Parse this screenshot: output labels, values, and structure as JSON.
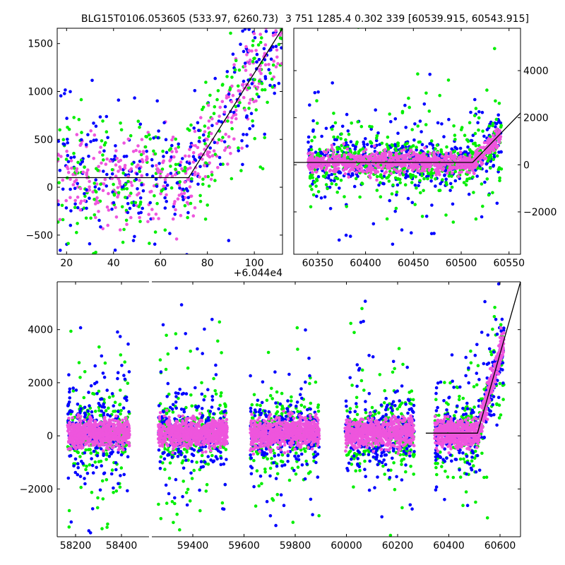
{
  "colors": {
    "series_blue": "#0000ff",
    "series_green": "#00ee00",
    "series_magenta": "#ee55dd",
    "model_line": "#000000"
  },
  "chart_data": [
    {
      "type": "scatter",
      "title": "BLG15T0106.053605 (533.97, 6260.73)",
      "xlim": [
        16,
        112
      ],
      "ylim": [
        -700,
        1660
      ],
      "x_offset_label": "+6.044e4",
      "xticks": [
        "20",
        "40",
        "60",
        "80",
        "100"
      ],
      "yticks": [
        "-500",
        "0",
        "500",
        "1000",
        "1500"
      ],
      "model_line": {
        "x": [
          16,
          72,
          112
        ],
        "y": [
          100,
          100,
          1660
        ]
      },
      "grid": false
    },
    {
      "type": "scatter",
      "title": "3 751 1285.4 0.302 339 [60539.915, 60543.915]",
      "xlim": [
        60325,
        60562
      ],
      "ylim": [
        -3800,
        5800
      ],
      "y_axis_side": "right",
      "xticks": [
        "60350",
        "60400",
        "60450",
        "60500",
        "60550"
      ],
      "yticks": [
        "-2000",
        "0",
        "2000",
        "4000"
      ],
      "model_line": {
        "x": [
          60325,
          60512,
          60562
        ],
        "y": [
          100,
          100,
          2200
        ]
      },
      "grid": false
    },
    {
      "type": "scatter",
      "title": "",
      "broken_x_axis": true,
      "segments": [
        {
          "xlim": [
            58120,
            58520
          ],
          "xticks": [
            "58200",
            "58400"
          ]
        },
        {
          "xlim": [
            59240,
            60680
          ],
          "xticks": [
            "59400",
            "59600",
            "59800",
            "60000",
            "60200",
            "60400",
            "60600"
          ]
        }
      ],
      "ylim": [
        -3800,
        5800
      ],
      "yticks": [
        "-2000",
        "0",
        "2000",
        "4000"
      ],
      "seasons": [
        58300,
        59400,
        59760,
        60130,
        60480
      ],
      "model_line": {
        "x": [
          60310,
          60512,
          60680
        ],
        "y": [
          100,
          100,
          5800
        ]
      },
      "grid": false
    }
  ]
}
